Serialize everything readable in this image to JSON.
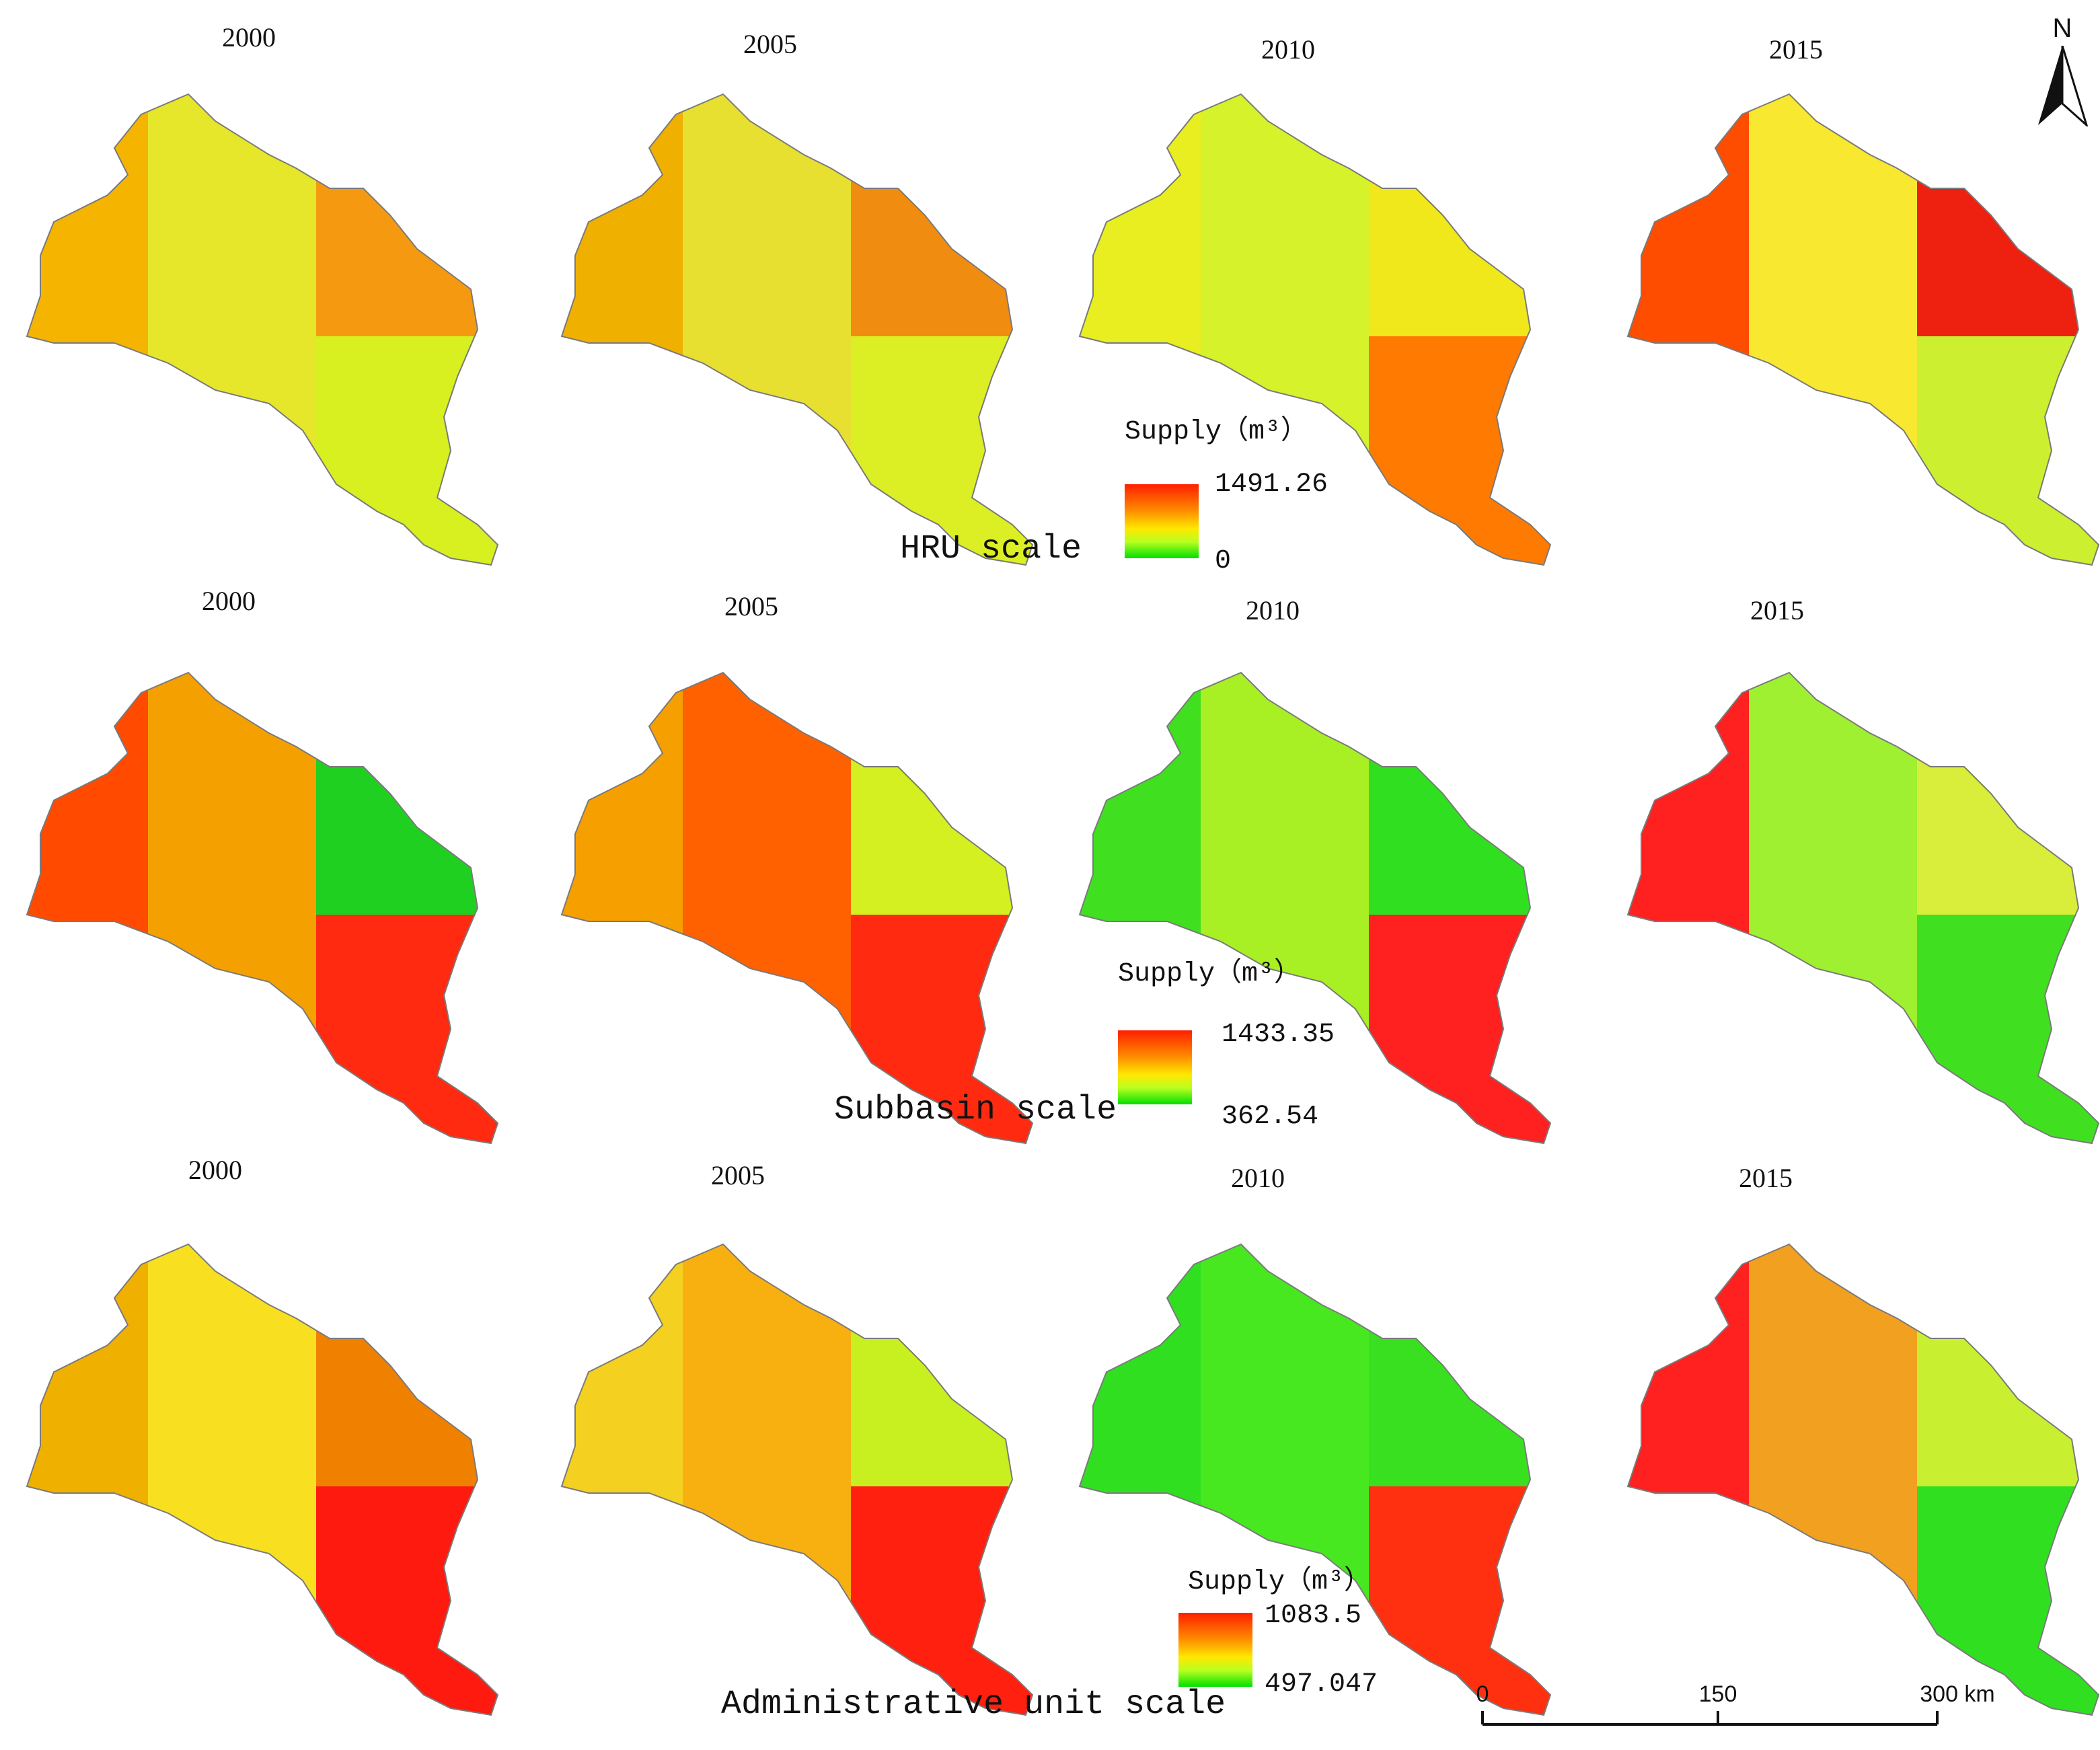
{
  "years": [
    "2000",
    "2005",
    "2010",
    "2015"
  ],
  "rows": [
    {
      "scale_label": "HRU scale",
      "legend": {
        "title": "Supply（m³）",
        "max": "1491.26",
        "min": "0"
      },
      "panel_colors": [
        [
          "#f4b400",
          "#e6e62a",
          "#f59a10",
          "#d8f020"
        ],
        [
          "#f0b000",
          "#e8e030",
          "#f08c10",
          "#dcef24"
        ],
        [
          "#e8ee20",
          "#d6f22a",
          "#f0e81a",
          "#ff7a00"
        ],
        [
          "#ff4d00",
          "#f8e830",
          "#ee2010",
          "#ccf030"
        ]
      ]
    },
    {
      "scale_label": "Subbasin scale",
      "legend": {
        "title": "Supply（m³）",
        "max": "1433.35",
        "min": "362.54"
      },
      "panel_colors": [
        [
          "#ff4a00",
          "#f4a000",
          "#20d020",
          "#ff2a10"
        ],
        [
          "#f5a000",
          "#ff6000",
          "#d4f020",
          "#ff2a10"
        ],
        [
          "#40e020",
          "#a8f024",
          "#30e020",
          "#ff2020"
        ],
        [
          "#ff2020",
          "#9ef030",
          "#d8ee3a",
          "#40e020"
        ]
      ]
    },
    {
      "scale_label": "Administrative unit scale",
      "legend": {
        "title": "Supply（m³）",
        "max": "1083.5",
        "min": "497.047"
      },
      "panel_colors": [
        [
          "#f0b000",
          "#f8e020",
          "#f08000",
          "#ff1a10"
        ],
        [
          "#f4d020",
          "#f8b010",
          "#c8f020",
          "#ff2010"
        ],
        [
          "#30e020",
          "#48e820",
          "#38e020",
          "#ff3010"
        ],
        [
          "#ff2020",
          "#f2a020",
          "#c8f030",
          "#30e020"
        ]
      ]
    }
  ],
  "north_arrow": {
    "label": "N",
    "icon": "north-arrow-icon"
  },
  "scale_bar": {
    "ticks": [
      "0",
      "150",
      "300 km"
    ]
  }
}
